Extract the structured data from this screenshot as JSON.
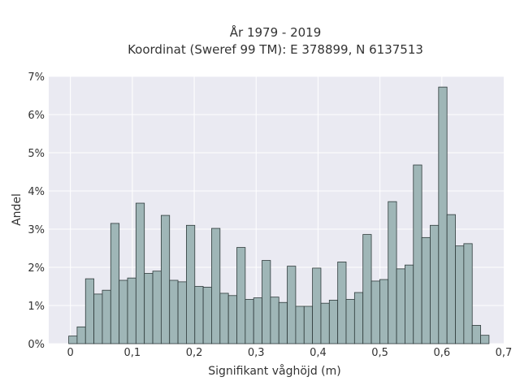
{
  "chart_data": {
    "type": "bar",
    "title": "År 1979 - 2019",
    "subtitle": "Koordinat (Sweref 99 TM): E 378899, N 6137513",
    "xlabel": "Signifikant våghöjd (m)",
    "ylabel": "Andel",
    "xlim": [
      -0.035,
      0.7
    ],
    "ylim": [
      0,
      7
    ],
    "xticks": [
      0,
      0.1,
      0.2,
      0.3,
      0.4,
      0.5,
      0.6,
      0.7
    ],
    "xtick_labels": [
      "0",
      "0,1",
      "0,2",
      "0,3",
      "0,4",
      "0,5",
      "0,6",
      "0,7"
    ],
    "yticks": [
      0,
      1,
      2,
      3,
      4,
      5,
      6,
      7
    ],
    "ytick_labels": [
      "0%",
      "1%",
      "2%",
      "3%",
      "4%",
      "5%",
      "6%",
      "7%"
    ],
    "grid": true,
    "bin_width": 0.01358,
    "bin_start": -0.00276,
    "bar_color": "#9fb6b7",
    "bar_edge_color": "#2f3b3b",
    "background_color": "#eaeaf2",
    "values": [
      0.2,
      0.44,
      1.7,
      1.3,
      1.4,
      3.15,
      1.66,
      1.72,
      3.68,
      1.84,
      1.9,
      3.36,
      1.66,
      1.62,
      3.1,
      1.5,
      1.48,
      3.02,
      1.32,
      1.26,
      2.52,
      1.16,
      1.2,
      2.18,
      1.22,
      1.08,
      2.03,
      0.98,
      0.98,
      1.98,
      1.06,
      1.14,
      2.14,
      1.16,
      1.34,
      2.86,
      1.64,
      1.68,
      3.72,
      1.96,
      2.06,
      4.68,
      2.78,
      3.1,
      6.72,
      3.38,
      2.56,
      2.62,
      0.48,
      0.22
    ]
  }
}
